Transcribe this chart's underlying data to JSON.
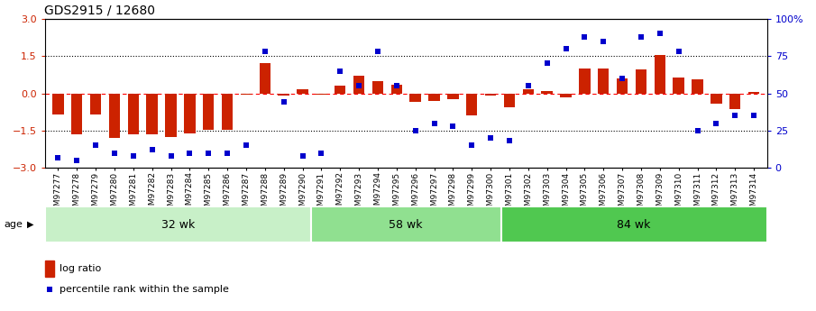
{
  "title": "GDS2915 / 12680",
  "samples": [
    "GSM97277",
    "GSM97278",
    "GSM97279",
    "GSM97280",
    "GSM97281",
    "GSM97282",
    "GSM97283",
    "GSM97284",
    "GSM97285",
    "GSM97286",
    "GSM97287",
    "GSM97288",
    "GSM97289",
    "GSM97290",
    "GSM97291",
    "GSM97292",
    "GSM97293",
    "GSM97294",
    "GSM97295",
    "GSM97296",
    "GSM97297",
    "GSM97298",
    "GSM97299",
    "GSM97300",
    "GSM97301",
    "GSM97302",
    "GSM97303",
    "GSM97304",
    "GSM97305",
    "GSM97306",
    "GSM97307",
    "GSM97308",
    "GSM97309",
    "GSM97310",
    "GSM97311",
    "GSM97312",
    "GSM97313",
    "GSM97314"
  ],
  "log_ratio": [
    -0.85,
    -1.65,
    -0.85,
    -1.8,
    -1.65,
    -1.65,
    -1.75,
    -1.6,
    -1.45,
    -1.45,
    -0.05,
    1.2,
    -0.1,
    0.15,
    -0.05,
    0.3,
    0.7,
    0.5,
    0.35,
    -0.35,
    -0.3,
    -0.25,
    -0.9,
    -0.1,
    -0.55,
    0.15,
    0.1,
    -0.15,
    1.0,
    1.0,
    0.6,
    0.95,
    1.55,
    0.65,
    0.55,
    -0.4,
    -0.65,
    0.05
  ],
  "percentile": [
    7,
    5,
    15,
    10,
    8,
    12,
    8,
    10,
    10,
    10,
    15,
    78,
    44,
    8,
    10,
    65,
    55,
    78,
    55,
    25,
    30,
    28,
    15,
    20,
    18,
    55,
    70,
    80,
    88,
    85,
    60,
    88,
    90,
    78,
    25,
    30,
    35,
    35
  ],
  "groups": [
    {
      "label": "32 wk",
      "start": 0,
      "end": 14,
      "color": "#c8f0c8"
    },
    {
      "label": "58 wk",
      "start": 14,
      "end": 24,
      "color": "#90e090"
    },
    {
      "label": "84 wk",
      "start": 24,
      "end": 38,
      "color": "#50c850"
    }
  ],
  "bar_color": "#cc2200",
  "dot_color": "#0000cc",
  "ylim_left": [
    -3,
    3
  ],
  "ylim_right": [
    0,
    100
  ],
  "yticks_left": [
    -3,
    -1.5,
    0,
    1.5,
    3
  ],
  "yticks_right": [
    0,
    25,
    50,
    75,
    100
  ],
  "ytick_labels_right": [
    "0",
    "25",
    "50",
    "75",
    "100%"
  ],
  "bg_color": "#ffffff",
  "title_fontsize": 10,
  "tick_fontsize": 6.5,
  "group_label_fontsize": 9,
  "age_label": "age"
}
